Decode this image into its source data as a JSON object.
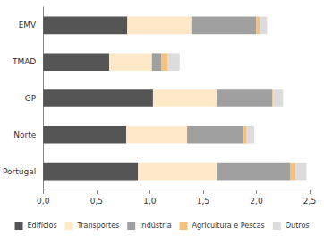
{
  "chart_data": {
    "type": "bar",
    "orientation": "horizontal",
    "stacked": true,
    "grid": false,
    "legend": "bottom",
    "categories": [
      "EMV",
      "TMAD",
      "GP",
      "Norte",
      "Portugal"
    ],
    "series": [
      {
        "name": "Edifícios",
        "color": "#555555",
        "values": [
          0.79,
          0.62,
          1.03,
          0.78,
          0.89
        ]
      },
      {
        "name": "Transportes",
        "color": "#fde9c8",
        "values": [
          0.6,
          0.4,
          0.6,
          0.57,
          0.74
        ]
      },
      {
        "name": "Indústria",
        "color": "#a0a0a0",
        "values": [
          0.61,
          0.09,
          0.52,
          0.53,
          0.69
        ]
      },
      {
        "name": "Agricultura e Pescas",
        "color": "#f5c07a",
        "values": [
          0.03,
          0.06,
          0.01,
          0.03,
          0.05
        ]
      },
      {
        "name": "Outros",
        "color": "#dcdcdc",
        "values": [
          0.07,
          0.11,
          0.09,
          0.07,
          0.1
        ]
      }
    ],
    "xlim": [
      0,
      2.5
    ],
    "xticks": [
      {
        "value": 0,
        "label": "0,0"
      },
      {
        "value": 0.5,
        "label": "0,5"
      },
      {
        "value": 1,
        "label": "1,0"
      },
      {
        "value": 1.5,
        "label": "1,5"
      },
      {
        "value": 2,
        "label": "2,0"
      },
      {
        "value": 2.5,
        "label": "2,5"
      }
    ]
  }
}
